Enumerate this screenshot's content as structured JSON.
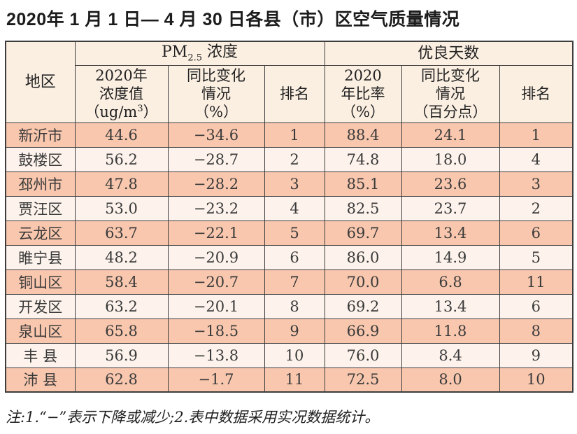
{
  "page": {
    "title": "2020年 1 月 1 日— 4 月 30 日各县（市）区空气质量情况",
    "note": "注:1.“−”表示下降或减少;2.表中数据采用实况数据统计。"
  },
  "colors": {
    "row-salmon": "#f8c7ae",
    "row-light": "#fdf3ec",
    "header-bg": "#fbefe2",
    "border": "#3d3d3d"
  },
  "table": {
    "header": {
      "region": "地区",
      "group_pm": {
        "prefix": "PM",
        "sub": "2.5",
        "suffix": " 浓度"
      },
      "group_days": "优良天数",
      "pm_value": {
        "l1": "2020年",
        "l2": "浓度值",
        "l3a": "（ug/m",
        "l3sup": "3",
        "l3b": "）"
      },
      "pm_change": {
        "l1": "同比变化",
        "l2": "情况",
        "l3": "（%）"
      },
      "pm_rank": "排名",
      "days_rate": {
        "l1": "2020",
        "l2": "年比率",
        "l3": "（%）"
      },
      "days_change": {
        "l1": "同比变化",
        "l2": "情况",
        "l3": "（百分点）"
      },
      "days_rank": "排名"
    },
    "row_fields": [
      "region",
      "pm_value",
      "pm_change",
      "pm_rank",
      "days_rate",
      "days_change",
      "days_rank"
    ],
    "rows": [
      {
        "region": "新沂市",
        "pm_value": "44.6",
        "pm_change": "−34.6",
        "pm_rank": "1",
        "days_rate": "88.4",
        "days_change": "24.1",
        "days_rank": "1"
      },
      {
        "region": "鼓楼区",
        "pm_value": "56.2",
        "pm_change": "−28.7",
        "pm_rank": "2",
        "days_rate": "74.8",
        "days_change": "18.0",
        "days_rank": "4"
      },
      {
        "region": "邳州市",
        "pm_value": "47.8",
        "pm_change": "−28.2",
        "pm_rank": "3",
        "days_rate": "85.1",
        "days_change": "23.6",
        "days_rank": "3"
      },
      {
        "region": "贾汪区",
        "pm_value": "53.0",
        "pm_change": "−23.2",
        "pm_rank": "4",
        "days_rate": "82.5",
        "days_change": "23.7",
        "days_rank": "2"
      },
      {
        "region": "云龙区",
        "pm_value": "63.7",
        "pm_change": "−22.1",
        "pm_rank": "5",
        "days_rate": "69.7",
        "days_change": "13.4",
        "days_rank": "6"
      },
      {
        "region": "睢宁县",
        "pm_value": "48.2",
        "pm_change": "−20.9",
        "pm_rank": "6",
        "days_rate": "86.0",
        "days_change": "14.9",
        "days_rank": "5"
      },
      {
        "region": "铜山区",
        "pm_value": "58.4",
        "pm_change": "−20.7",
        "pm_rank": "7",
        "days_rate": "70.0",
        "days_change": "6.8",
        "days_rank": "11"
      },
      {
        "region": "开发区",
        "pm_value": "63.2",
        "pm_change": "−20.1",
        "pm_rank": "8",
        "days_rate": "69.2",
        "days_change": "13.4",
        "days_rank": "6"
      },
      {
        "region": "泉山区",
        "pm_value": "65.8",
        "pm_change": "−18.5",
        "pm_rank": "9",
        "days_rate": "66.9",
        "days_change": "11.8",
        "days_rank": "8"
      },
      {
        "region": "丰 县",
        "pm_value": "56.9",
        "pm_change": "−13.8",
        "pm_rank": "10",
        "days_rate": "76.0",
        "days_change": "8.4",
        "days_rank": "9"
      },
      {
        "region": "沛 县",
        "pm_value": "62.8",
        "pm_change": "−1.7",
        "pm_rank": "11",
        "days_rate": "72.5",
        "days_change": "8.0",
        "days_rank": "10"
      }
    ]
  }
}
